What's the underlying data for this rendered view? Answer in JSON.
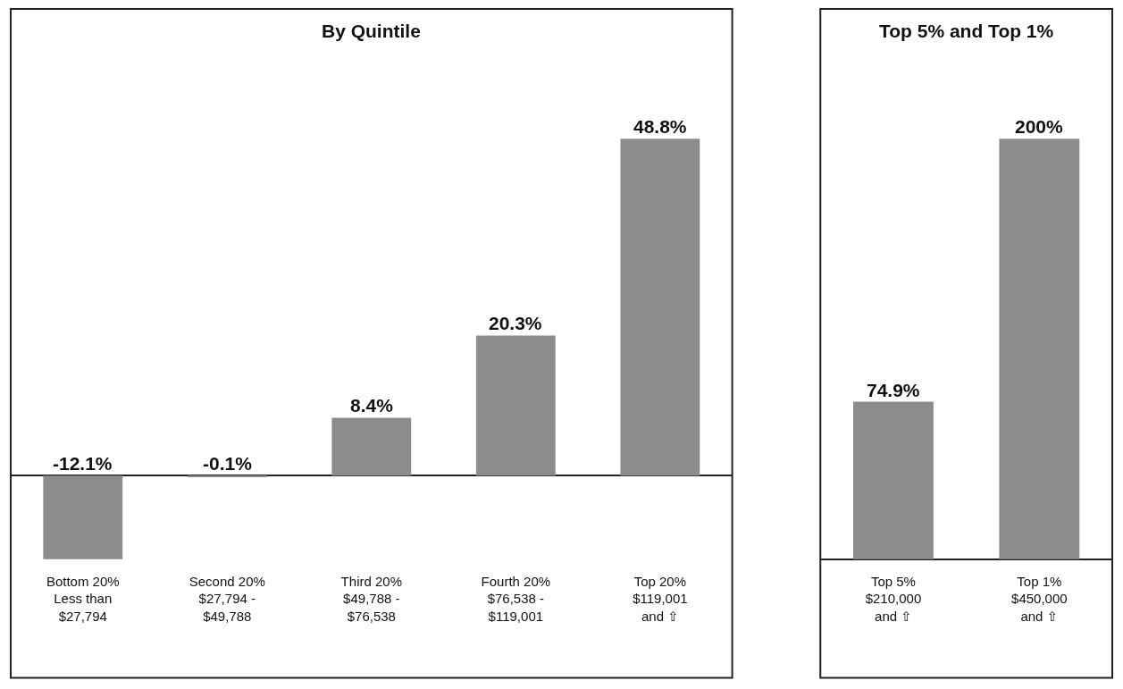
{
  "chart_data": [
    {
      "type": "bar",
      "title": "By Quintile",
      "categories": [
        "Bottom 20%\nLess than\n$27,794",
        "Second 20%\n$27,794 -\n$49,788",
        "Third 20%\n$49,788 -\n$76,538",
        "Fourth 20%\n$76,538 -\n$119,001",
        "Top 20%\n$119,001\nand ⇧"
      ],
      "values": [
        -12.1,
        -0.1,
        8.4,
        20.3,
        48.8
      ],
      "value_labels": [
        "-12.1%",
        "-0.1%",
        "8.4%",
        "20.3%",
        "48.8%"
      ],
      "color": "#8c8c8c"
    },
    {
      "type": "bar",
      "title": "Top 5% and Top 1%",
      "categories": [
        "Top 5%\n$210,000\nand ⇧",
        "Top 1%\n$450,000\nand ⇧"
      ],
      "values": [
        74.9,
        200
      ],
      "value_labels": [
        "74.9%",
        "200%"
      ],
      "color": "#8c8c8c"
    }
  ]
}
